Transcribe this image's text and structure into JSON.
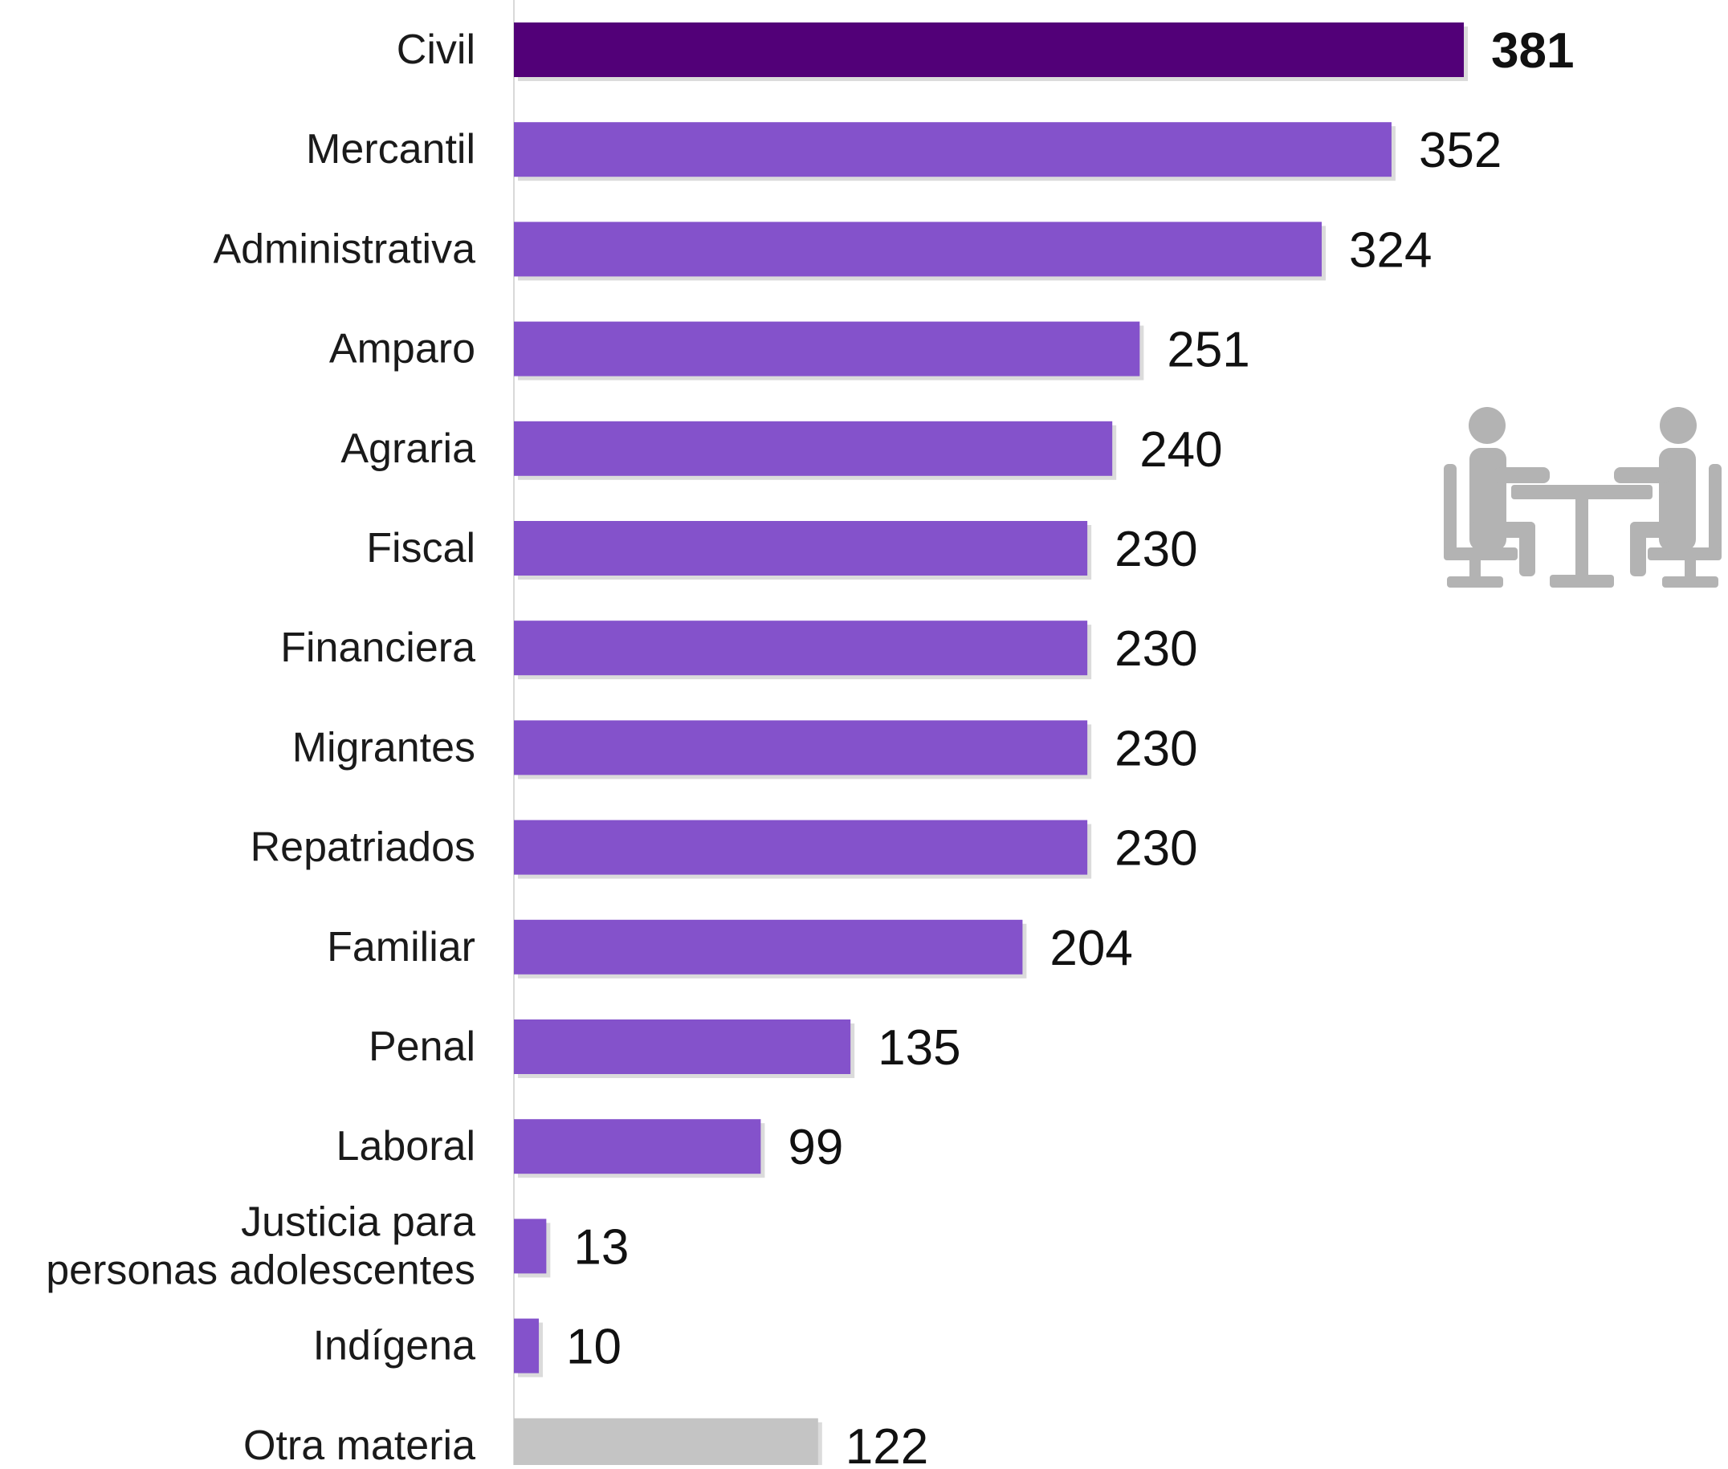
{
  "chart_data": {
    "type": "bar",
    "orientation": "horizontal",
    "categories": [
      "Civil",
      "Mercantil",
      "Administrativa",
      "Amparo",
      "Agraria",
      "Fiscal",
      "Financiera",
      "Migrantes",
      "Repatriados",
      "Familiar",
      "Penal",
      "Laboral",
      "Justicia para personas adolescentes",
      "Indígena",
      "Otra materia"
    ],
    "category_lines": [
      [
        "Civil"
      ],
      [
        "Mercantil"
      ],
      [
        "Administrativa"
      ],
      [
        "Amparo"
      ],
      [
        "Agraria"
      ],
      [
        "Fiscal"
      ],
      [
        "Financiera"
      ],
      [
        "Migrantes"
      ],
      [
        "Repatriados"
      ],
      [
        "Familiar"
      ],
      [
        "Penal"
      ],
      [
        "Laboral"
      ],
      [
        "Justicia para",
        "personas adolescentes"
      ],
      [
        "Indígena"
      ],
      [
        "Otra materia"
      ]
    ],
    "values": [
      381,
      352,
      324,
      251,
      240,
      230,
      230,
      230,
      230,
      204,
      135,
      99,
      13,
      10,
      122
    ],
    "value_labels": [
      "381",
      "352",
      "324",
      "251",
      "240",
      "230",
      "230",
      "230",
      "230",
      "204",
      "135",
      "99",
      "13",
      "10",
      "122"
    ],
    "highlight_index": 0,
    "xlim": [
      0,
      381
    ],
    "grid": false,
    "legend": "none",
    "title": "",
    "xlabel": "",
    "ylabel": ""
  },
  "colors": {
    "highlight": "#520078",
    "bar": "#8452CB",
    "other": "#C4C4C4",
    "label_text": "#1a1a1a",
    "axis_line": "#D9D9D9",
    "icon": "#B3B3B3",
    "shadow": "#BDBDBD"
  },
  "icon": {
    "name": "meeting-icon"
  }
}
